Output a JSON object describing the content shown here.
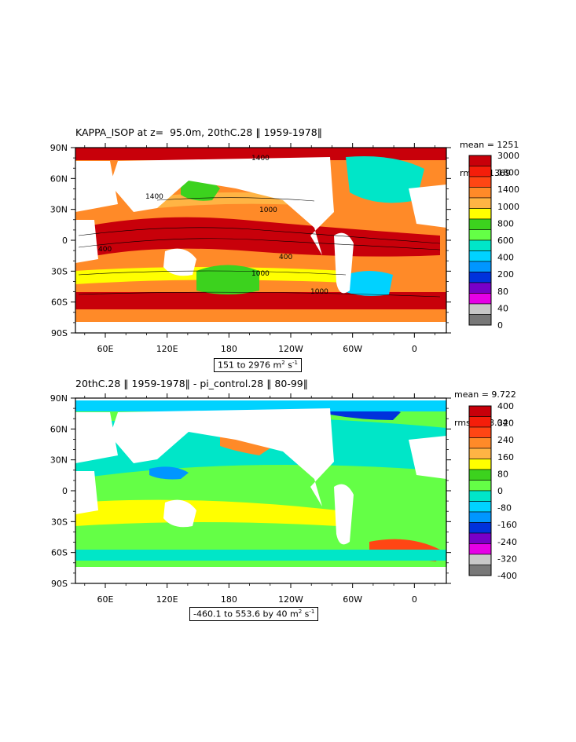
{
  "top": {
    "title": "KAPPA_ISOP at z=  95.0m, 20thC.28 ‖ 1959-1978‖",
    "mean": "mean = 1251",
    "rms": "rms = 1369",
    "range_text": "151 to 2976 m",
    "range_unit1": "2",
    "range_unit2": " s",
    "range_unit3": "-1",
    "colorbar_labels": [
      "3000",
      "1800",
      "1400",
      "1000",
      "800",
      "600",
      "400",
      "200",
      "80",
      "40",
      "0"
    ],
    "colorbar_colors": [
      "#c8000a",
      "#f51e0a",
      "#ff4614",
      "#ff8a28",
      "#ffb444",
      "#ffff00",
      "#3cd21e",
      "#64ff46",
      "#00e6c8",
      "#00d2ff",
      "#0096ff",
      "#0032dc",
      "#7800c8",
      "#e600e6",
      "#c8c8c8",
      "#787878"
    ],
    "contour_labels": [
      "1400",
      "1000",
      "400",
      "1000",
      "1000",
      "1400",
      "400"
    ]
  },
  "bottom": {
    "title": "20thC.28 ‖ 1959-1978‖ - pi_control.28 ‖ 80-99‖",
    "mean": "mean = 9.722",
    "rms": "rms = 78.04",
    "range_text": "-460.1 to 553.6 by 40 m",
    "range_unit1": "2",
    "range_unit2": " s",
    "range_unit3": "-1",
    "colorbar_labels": [
      "400",
      "320",
      "240",
      "160",
      "80",
      "0",
      "-80",
      "-160",
      "-240",
      "-320",
      "-400"
    ],
    "colorbar_colors": [
      "#c8000a",
      "#f51e0a",
      "#ff4614",
      "#ff8a28",
      "#ffb444",
      "#ffff00",
      "#3cd21e",
      "#64ff46",
      "#00e6c8",
      "#00d2ff",
      "#0096ff",
      "#0032dc",
      "#7800c8",
      "#e600e6",
      "#c8c8c8",
      "#787878"
    ]
  },
  "axes": {
    "lat_labels": [
      "90N",
      "60N",
      "30N",
      "0",
      "30S",
      "60S",
      "90S"
    ],
    "lon_labels": [
      "60E",
      "120E",
      "180",
      "120W",
      "60W",
      "0"
    ]
  }
}
